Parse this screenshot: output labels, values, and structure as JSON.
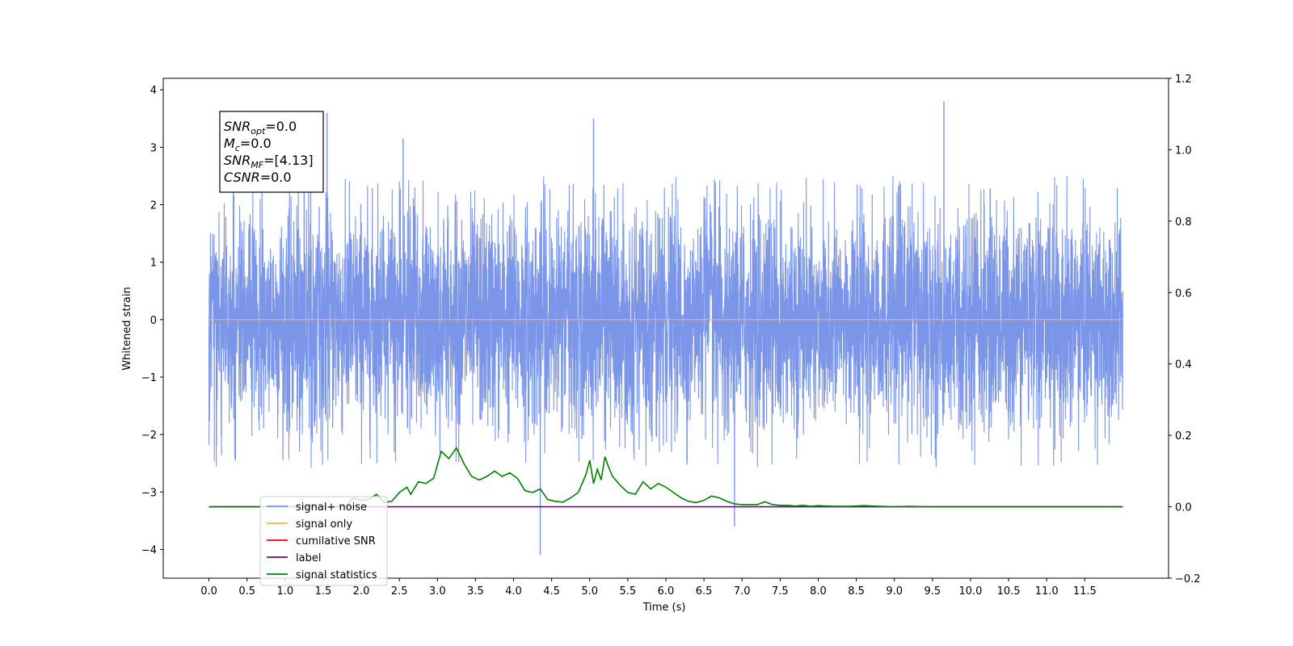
{
  "chart_data": {
    "type": "line",
    "xlabel": "Time (s)",
    "ylabel": "Whitened strain",
    "xlim": [
      -0.6,
      12.6
    ],
    "ylim": [
      -4.5,
      4.2
    ],
    "ylim_right": [
      -0.2,
      1.2
    ],
    "x_ticks": [
      "0.0",
      "0.5",
      "1.0",
      "1.5",
      "2.0",
      "2.5",
      "3.0",
      "3.5",
      "4.0",
      "4.5",
      "5.0",
      "5.5",
      "6.0",
      "6.5",
      "7.0",
      "7.5",
      "8.0",
      "8.5",
      "9.0",
      "9.5",
      "10.0",
      "10.5",
      "11.0",
      "11.5"
    ],
    "y_ticks": [
      "4",
      "3",
      "2",
      "1",
      "0",
      "−1",
      "−2",
      "−3",
      "−4"
    ],
    "y_ticks_right": [
      "1.2",
      "1.0",
      "0.8",
      "0.6",
      "0.4",
      "0.2",
      "0.0",
      "−0.2"
    ],
    "grid": false,
    "legend_position": "lower-left",
    "series": [
      {
        "name": "signal+ noise",
        "color": "#7b96e8",
        "axis": "left",
        "description": "whitened strain noise, roughly Gaussian, spanning about -2.6 to 2.4 with occasional spikes",
        "duration": 12.0,
        "peaks": [
          [
            0.32,
            2.55
          ],
          [
            1.25,
            3.55
          ],
          [
            1.55,
            3.6
          ],
          [
            2.55,
            3.15
          ],
          [
            4.35,
            -4.1
          ],
          [
            5.05,
            3.5
          ],
          [
            6.9,
            -3.6
          ],
          [
            9.65,
            3.8
          ]
        ]
      },
      {
        "name": "signal only",
        "color": "#ffb347",
        "axis": "left",
        "x": [
          0.0,
          12.0
        ],
        "y": [
          0.0,
          0.0
        ]
      },
      {
        "name": "cumilative SNR",
        "color": "#ff0000",
        "axis": "right",
        "x": [],
        "y": []
      },
      {
        "name": "label",
        "color": "#800080",
        "axis": "right",
        "x": [
          0.0,
          12.0
        ],
        "y": [
          0.0,
          0.0
        ]
      },
      {
        "name": "signal statistics",
        "color": "#008000",
        "axis": "right",
        "x": [
          0.0,
          1.0,
          1.6,
          1.8,
          1.9,
          2.0,
          2.1,
          2.2,
          2.3,
          2.4,
          2.5,
          2.6,
          2.65,
          2.75,
          2.85,
          2.95,
          3.05,
          3.15,
          3.25,
          3.35,
          3.45,
          3.55,
          3.65,
          3.75,
          3.85,
          3.95,
          4.05,
          4.15,
          4.25,
          4.35,
          4.45,
          4.55,
          4.65,
          4.75,
          4.85,
          4.95,
          5.0,
          5.05,
          5.1,
          5.15,
          5.2,
          5.25,
          5.3,
          5.4,
          5.5,
          5.6,
          5.7,
          5.8,
          5.9,
          6.0,
          6.1,
          6.2,
          6.3,
          6.4,
          6.5,
          6.6,
          6.7,
          6.8,
          6.9,
          7.0,
          7.1,
          7.2,
          7.3,
          7.4,
          7.5,
          7.6,
          7.7,
          7.8,
          7.9,
          8.0,
          8.1,
          8.2,
          8.4,
          8.6,
          8.8,
          9.0,
          9.2,
          9.4,
          10.0,
          11.0,
          12.0
        ],
        "y": [
          0.0,
          0.0,
          0.0,
          0.002,
          0.025,
          0.018,
          0.02,
          0.035,
          0.012,
          0.015,
          0.04,
          0.055,
          0.035,
          0.07,
          0.065,
          0.08,
          0.155,
          0.135,
          0.165,
          0.12,
          0.085,
          0.075,
          0.085,
          0.1,
          0.085,
          0.095,
          0.08,
          0.045,
          0.04,
          0.05,
          0.02,
          0.015,
          0.013,
          0.025,
          0.04,
          0.09,
          0.13,
          0.065,
          0.105,
          0.075,
          0.14,
          0.11,
          0.085,
          0.06,
          0.04,
          0.035,
          0.07,
          0.05,
          0.065,
          0.055,
          0.04,
          0.025,
          0.015,
          0.012,
          0.018,
          0.03,
          0.025,
          0.015,
          0.008,
          0.006,
          0.006,
          0.006,
          0.014,
          0.006,
          0.004,
          0.004,
          0.002,
          0.004,
          0.001,
          0.003,
          0.002,
          0.001,
          0.001,
          0.003,
          0.001,
          0.0,
          0.001,
          0.0,
          0.0,
          0.0,
          0.0
        ]
      }
    ],
    "annotation": {
      "lines": [
        {
          "sym": "SNR",
          "sub": "opt",
          "value": "=0.0"
        },
        {
          "sym": "M",
          "sub": "c",
          "value": "=0.0"
        },
        {
          "sym": "SNR",
          "sub": "MF",
          "value": "=[4.13]"
        },
        {
          "sym": "CSNR",
          "sub": "",
          "value": "=0.0"
        }
      ]
    }
  }
}
